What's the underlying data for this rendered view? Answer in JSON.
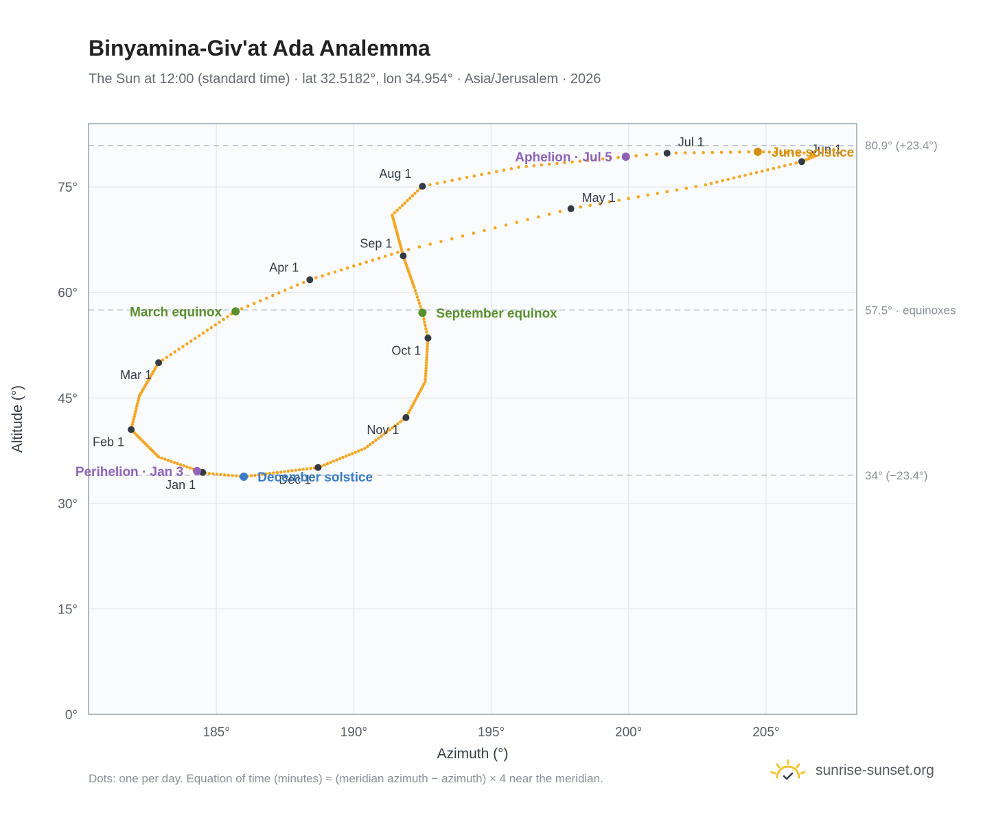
{
  "header": {
    "title": "Binyamina-Giv'at Ada Analemma",
    "subtitle": "The Sun at 12:00 (standard time) · lat 32.5182°, lon 34.954° · Asia/Jerusalem · 2026"
  },
  "footer": {
    "note": "Dots: one per day. Equation of time (minutes) ≈ (meridian azimuth − azimuth) × 4 near the meridian.",
    "brand": "sunrise-sunset.org"
  },
  "colors": {
    "curve": "#f5a623",
    "month_marker": "#333a44",
    "equinox": "#5a8f2e",
    "june_solstice": "#d4900e",
    "december_solstice": "#3b7dc4",
    "apsis": "#8e63b8",
    "reference_line": "#b8c2cc",
    "plot_background": "#f9fbfd",
    "grid": "#e6eaef",
    "frame": "#9aa3ae"
  },
  "chart_data": {
    "type": "scatter",
    "title": "Binyamina-Giv'at Ada Analemma",
    "xlabel": "Azimuth (°)",
    "ylabel": "Altitude (°)",
    "xlim": [
      180.35,
      208.3
    ],
    "ylim": [
      0,
      84
    ],
    "xticks": [
      185,
      190,
      195,
      200,
      205
    ],
    "yticks": [
      0,
      15,
      30,
      45,
      60,
      75
    ],
    "xtick_labels": [
      "185°",
      "190°",
      "195°",
      "200°",
      "205°"
    ],
    "ytick_labels": [
      "0°",
      "15°",
      "30°",
      "45°",
      "60°",
      "75°"
    ],
    "grid": true,
    "reference_lines": [
      {
        "y": 80.9,
        "label": "80.9° (+23.4°)"
      },
      {
        "y": 57.5,
        "label": "57.5° · equinoxes"
      },
      {
        "y": 34,
        "label": "34° (−23.4°)"
      }
    ],
    "analemma_anchors": [
      {
        "doy": 1,
        "az": 184.5,
        "alt": 34.4
      },
      {
        "doy": 15,
        "az": 182.9,
        "alt": 36.6
      },
      {
        "doy": 32,
        "az": 181.9,
        "alt": 40.5
      },
      {
        "doy": 45,
        "az": 182.2,
        "alt": 45.3
      },
      {
        "doy": 60,
        "az": 182.9,
        "alt": 50.0
      },
      {
        "doy": 79,
        "az": 185.7,
        "alt": 57.3
      },
      {
        "doy": 91,
        "az": 188.4,
        "alt": 61.8
      },
      {
        "doy": 105,
        "az": 191.6,
        "alt": 65.7
      },
      {
        "doy": 121,
        "az": 197.9,
        "alt": 71.9
      },
      {
        "doy": 135,
        "az": 202.8,
        "alt": 75.3
      },
      {
        "doy": 152,
        "az": 206.3,
        "alt": 78.6
      },
      {
        "doy": 158,
        "az": 206.8,
        "alt": 79.4
      },
      {
        "doy": 163,
        "az": 206.6,
        "alt": 79.8
      },
      {
        "doy": 172,
        "az": 204.7,
        "alt": 80.0
      },
      {
        "doy": 182,
        "az": 201.4,
        "alt": 79.8
      },
      {
        "doy": 186,
        "az": 199.9,
        "alt": 79.3
      },
      {
        "doy": 200,
        "az": 196.0,
        "alt": 77.8
      },
      {
        "doy": 213,
        "az": 192.5,
        "alt": 75.1
      },
      {
        "doy": 225,
        "az": 191.4,
        "alt": 71.0
      },
      {
        "doy": 244,
        "az": 191.8,
        "alt": 65.2
      },
      {
        "doy": 258,
        "az": 192.2,
        "alt": 60.7
      },
      {
        "doy": 266,
        "az": 192.5,
        "alt": 57.1
      },
      {
        "doy": 274,
        "az": 192.7,
        "alt": 53.5
      },
      {
        "doy": 290,
        "az": 192.6,
        "alt": 47.3
      },
      {
        "doy": 305,
        "az": 191.9,
        "alt": 42.2
      },
      {
        "doy": 320,
        "az": 190.4,
        "alt": 37.8
      },
      {
        "doy": 335,
        "az": 188.7,
        "alt": 35.1
      },
      {
        "doy": 355,
        "az": 186.0,
        "alt": 33.8
      },
      {
        "doy": 365,
        "az": 184.6,
        "alt": 34.3
      }
    ],
    "month_markers": [
      {
        "label": "Jan 1",
        "az": 184.5,
        "alt": 34.4,
        "pos": "below-left"
      },
      {
        "label": "Feb 1",
        "az": 181.9,
        "alt": 40.5,
        "pos": "below-left"
      },
      {
        "label": "Mar 1",
        "az": 182.9,
        "alt": 50.0,
        "pos": "below-left"
      },
      {
        "label": "Apr 1",
        "az": 188.4,
        "alt": 61.8,
        "pos": "above-left"
      },
      {
        "label": "May 1",
        "az": 197.9,
        "alt": 71.9,
        "pos": "above-right"
      },
      {
        "label": "Jun 1",
        "az": 206.3,
        "alt": 78.6,
        "pos": "above"
      },
      {
        "label": "Jul 1",
        "az": 201.4,
        "alt": 79.8,
        "pos": "above-right"
      },
      {
        "label": "Aug 1",
        "az": 192.5,
        "alt": 75.1,
        "pos": "above-left"
      },
      {
        "label": "Sep 1",
        "az": 191.8,
        "alt": 65.2,
        "pos": "above-left"
      },
      {
        "label": "Oct 1",
        "az": 192.7,
        "alt": 53.5,
        "pos": "below-left"
      },
      {
        "label": "Nov 1",
        "az": 191.9,
        "alt": 42.2,
        "pos": "below-left"
      },
      {
        "label": "Dec 1",
        "az": 188.7,
        "alt": 35.1,
        "pos": "below-left"
      }
    ],
    "events": [
      {
        "label": "March equinox",
        "az": 185.7,
        "alt": 57.3,
        "color_key": "equinox",
        "pos": "left"
      },
      {
        "label": "September equinox",
        "az": 192.5,
        "alt": 57.1,
        "color_key": "equinox",
        "pos": "right"
      },
      {
        "label": "June solstice",
        "az": 204.7,
        "alt": 80.0,
        "color_key": "june_solstice",
        "pos": "right"
      },
      {
        "label": "December solstice",
        "az": 186.0,
        "alt": 33.8,
        "color_key": "december_solstice",
        "pos": "right"
      },
      {
        "label": "Perihelion · Jan 3",
        "az": 184.3,
        "alt": 34.6,
        "color_key": "apsis",
        "pos": "left"
      },
      {
        "label": "Aphelion · Jul 5",
        "az": 199.9,
        "alt": 79.3,
        "color_key": "apsis",
        "pos": "left"
      }
    ]
  }
}
